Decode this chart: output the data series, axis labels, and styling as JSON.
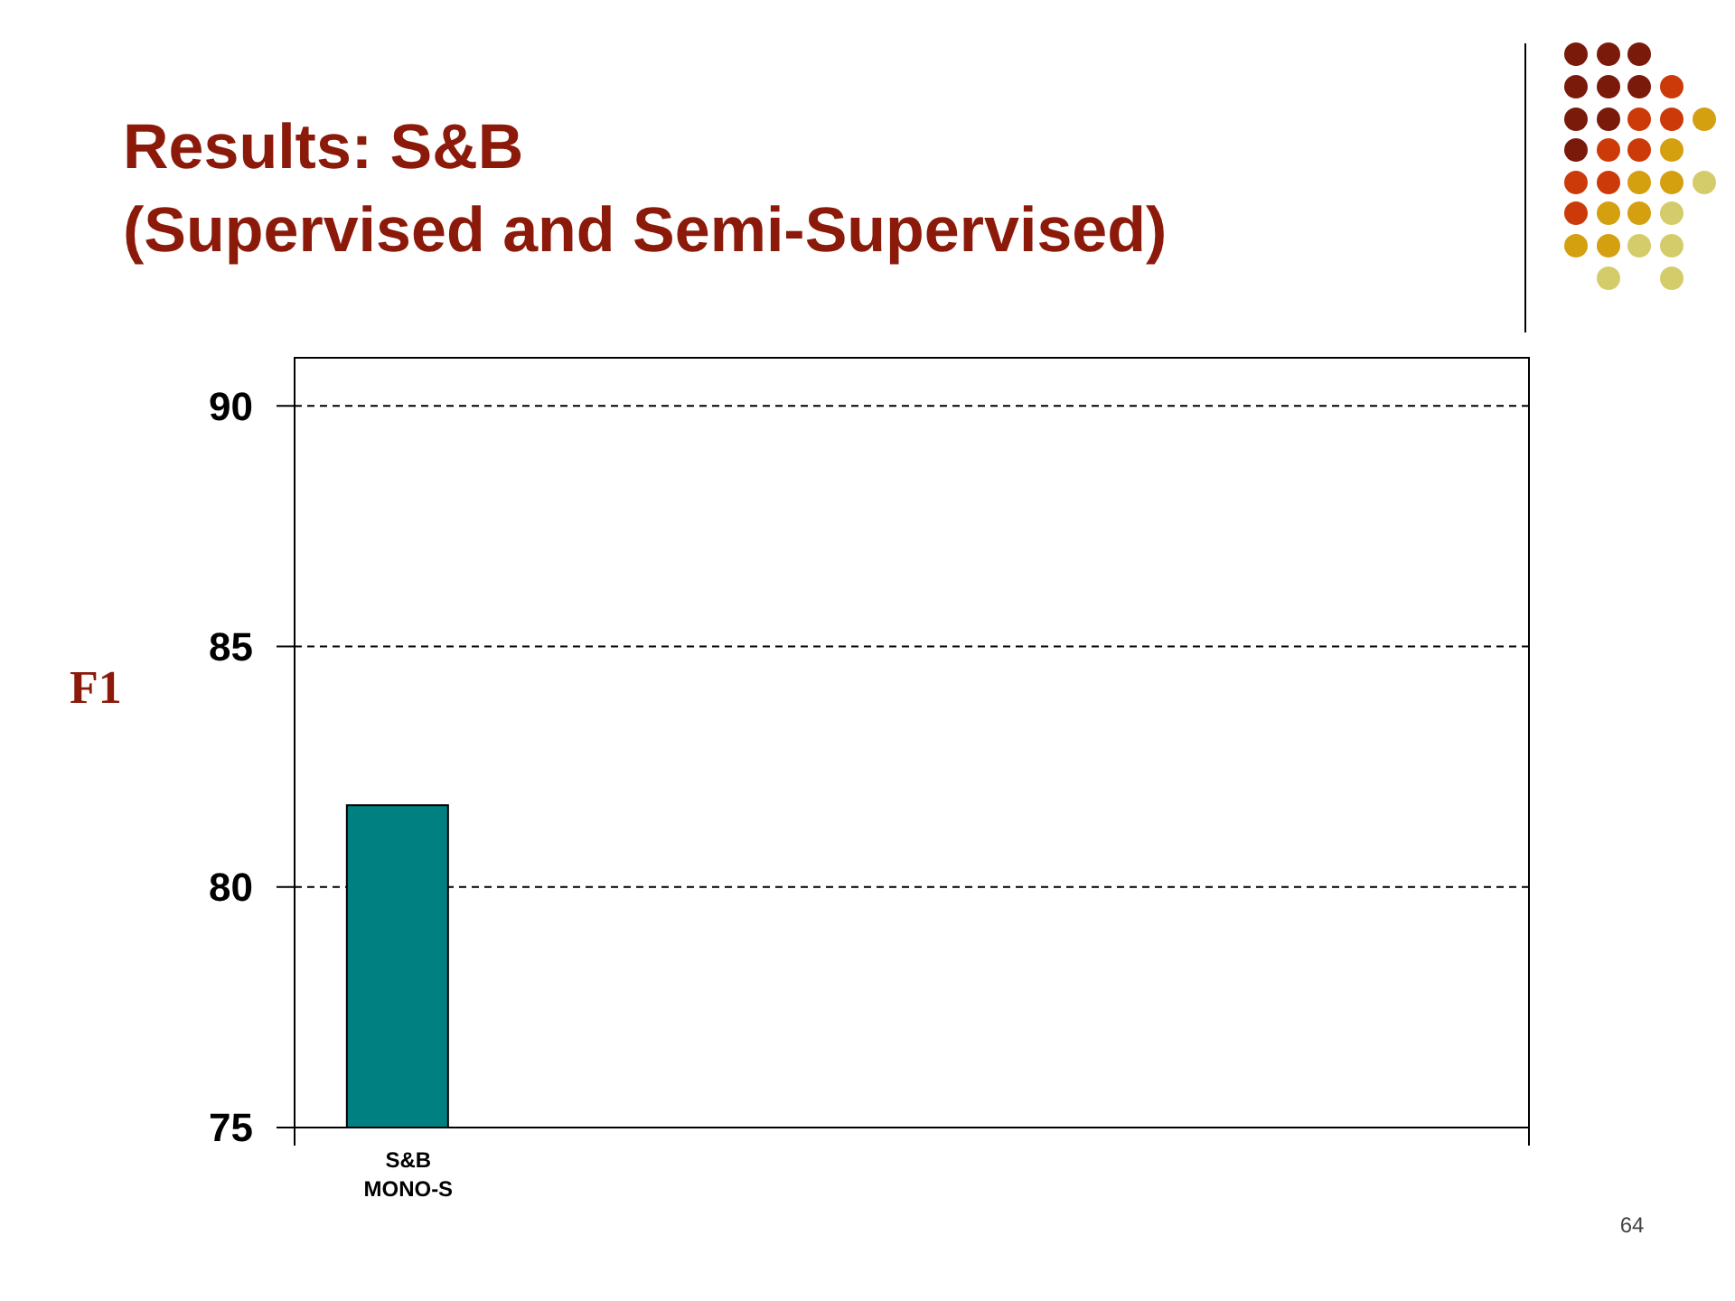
{
  "chart_data": {
    "type": "bar",
    "title": "Results: S&B\n(Supervised and Semi-Supervised)",
    "ylabel": "F1",
    "categories": [
      "S&B MONO-S",
      null,
      null,
      null,
      null,
      null
    ],
    "values": [
      81.7,
      null,
      null,
      null,
      null,
      null
    ],
    "color": "#008080",
    "ylim": [
      75,
      91
    ],
    "yticks": [
      75,
      80,
      85,
      90
    ],
    "grid": "y",
    "line_style": "dashed",
    "annotations": [
      "64"
    ]
  }
}
